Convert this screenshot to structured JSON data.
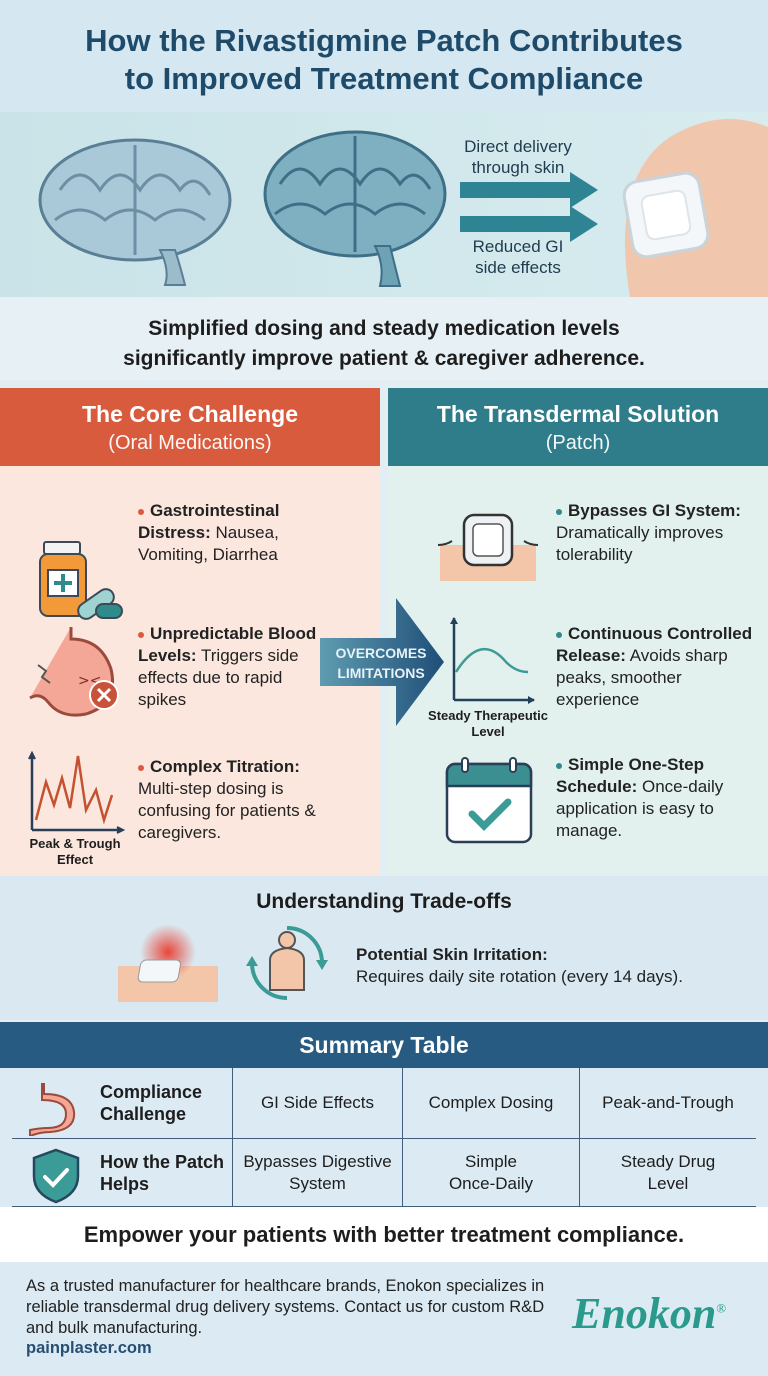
{
  "title": {
    "line1": "How the Rivastigmine Patch Contributes",
    "line2": "to Improved Treatment Compliance"
  },
  "hero": {
    "label1_line1": "Direct delivery",
    "label1_line2": "through skin",
    "label2_line1": "Reduced GI",
    "label2_line2": "side effects"
  },
  "subtitle": {
    "line1": "Simplified dosing and steady medication levels",
    "line2": "significantly improve patient & caregiver adherence."
  },
  "left": {
    "title": "The Core Challenge",
    "subtitle": "(Oral Medications)",
    "color": "#d95b3d",
    "items": [
      {
        "bold": "Gastrointestinal Distress:",
        "text": " Nausea, Vomiting, Diarrhea",
        "icon": "pill-bottle-icon"
      },
      {
        "bold": "Unpredictable Blood Levels:",
        "text": " Triggers side effects due to rapid spikes",
        "icon": "upset-stomach-icon"
      },
      {
        "bold": "Complex Titration:",
        "text": " Multi-step dosing is confusing for patients & caregivers.",
        "icon": "peak-trough-chart-icon",
        "caption": "Peak & Trough Effect"
      }
    ]
  },
  "right": {
    "title": "The Transdermal Solution",
    "subtitle": "(Patch)",
    "color": "#2f7c8b",
    "items": [
      {
        "bold": "Bypasses GI System:",
        "text": " Dramatically improves tolerability",
        "icon": "skin-patch-icon"
      },
      {
        "bold": "Continuous Controlled Release:",
        "text": " Avoids sharp peaks, smoother experience",
        "icon": "steady-curve-icon",
        "caption": "Steady Therapeutic Level"
      },
      {
        "bold": "Simple One-Step Schedule:",
        "text": " Once-daily application is easy to manage.",
        "icon": "calendar-check-icon"
      }
    ]
  },
  "arrow": {
    "line1": "OVERCOMES",
    "line2": "LIMITATIONS"
  },
  "tradeoffs": {
    "title": "Understanding Trade-offs",
    "bold": "Potential Skin Irritation:",
    "text": "Requires daily site rotation (every 14 days)."
  },
  "summary": {
    "title": "Summary Table",
    "rows": [
      {
        "header": "Compliance Challenge",
        "icon": "stomach-icon",
        "cells": [
          "GI Side Effects",
          "Complex Dosing",
          "Peak-and-Trough"
        ]
      },
      {
        "header": "How the Patch Helps",
        "icon": "shield-check-icon",
        "cells": [
          "Bypasses Digestive System",
          "Simple Once-Daily",
          "Steady Drug Level"
        ]
      }
    ]
  },
  "cta": "Empower your patients with better treatment compliance.",
  "footer": {
    "text": "As a trusted manufacturer for healthcare brands, Enokon specializes in reliable transdermal drug delivery systems. Contact us for custom R&D and bulk manufacturing.",
    "link": "painplaster.com",
    "logo": "Enokon",
    "logo_mark": "®",
    "brand_color": "#2a9a8c"
  }
}
